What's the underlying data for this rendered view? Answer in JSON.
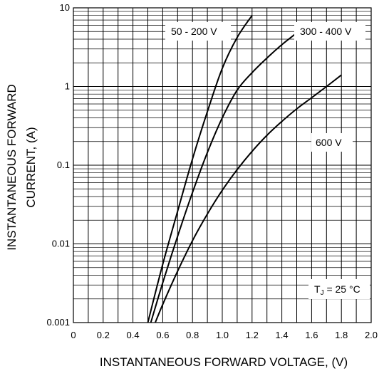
{
  "chart_data": {
    "type": "line",
    "xlabel": "INSTANTANEOUS FORWARD VOLTAGE, (V)",
    "ylabel_line1": "INSTANTANEOUS FORWARD",
    "ylabel_line2": "CURRENT, (A)",
    "xlim": [
      0,
      2.0
    ],
    "ylim": [
      0.001,
      10
    ],
    "yscale": "log",
    "grid": true,
    "x_ticks": [
      {
        "value": 0,
        "label": "0"
      },
      {
        "value": 0.2,
        "label": "0.2"
      },
      {
        "value": 0.4,
        "label": "0.4"
      },
      {
        "value": 0.6,
        "label": "0.6"
      },
      {
        "value": 0.8,
        "label": "0.8"
      },
      {
        "value": 1.0,
        "label": "1.0"
      },
      {
        "value": 1.2,
        "label": "1.2"
      },
      {
        "value": 1.4,
        "label": "1.4"
      },
      {
        "value": 1.6,
        "label": "1.6"
      },
      {
        "value": 1.8,
        "label": "1.8"
      },
      {
        "value": 2.0,
        "label": "2.0"
      }
    ],
    "y_ticks": [
      {
        "value": 0.001,
        "label": "0.001"
      },
      {
        "value": 0.01,
        "label": "0.01"
      },
      {
        "value": 0.1,
        "label": "0.1"
      },
      {
        "value": 1,
        "label": "1"
      },
      {
        "value": 10,
        "label": "10"
      }
    ],
    "series": [
      {
        "name": "50 - 200 V",
        "points": [
          [
            0.5,
            0.001
          ],
          [
            0.6,
            0.0055
          ],
          [
            0.7,
            0.026
          ],
          [
            0.8,
            0.12
          ],
          [
            0.9,
            0.48
          ],
          [
            1.0,
            1.7
          ],
          [
            1.1,
            4.2
          ],
          [
            1.2,
            8.0
          ]
        ]
      },
      {
        "name": "300 - 400 V",
        "points": [
          [
            0.52,
            0.001
          ],
          [
            0.6,
            0.0032
          ],
          [
            0.7,
            0.0125
          ],
          [
            0.8,
            0.045
          ],
          [
            0.9,
            0.145
          ],
          [
            1.0,
            0.4
          ],
          [
            1.1,
            0.9
          ],
          [
            1.2,
            1.5
          ],
          [
            1.3,
            2.3
          ],
          [
            1.4,
            3.4
          ],
          [
            1.5,
            4.8
          ]
        ]
      },
      {
        "name": "600 V",
        "points": [
          [
            0.55,
            0.001
          ],
          [
            0.6,
            0.0017
          ],
          [
            0.7,
            0.0045
          ],
          [
            0.8,
            0.011
          ],
          [
            0.9,
            0.024
          ],
          [
            1.0,
            0.048
          ],
          [
            1.1,
            0.088
          ],
          [
            1.2,
            0.15
          ],
          [
            1.3,
            0.24
          ],
          [
            1.4,
            0.36
          ],
          [
            1.5,
            0.52
          ],
          [
            1.6,
            0.72
          ],
          [
            1.7,
            1.0
          ],
          [
            1.8,
            1.4
          ]
        ]
      }
    ],
    "annotations": [
      {
        "id": "label-50-200",
        "text": "50 - 200 V",
        "series": 0
      },
      {
        "id": "label-300-400",
        "text": "300 - 400 V",
        "series": 1
      },
      {
        "id": "label-600",
        "text": "600 V",
        "series": 2
      }
    ],
    "condition": {
      "prefix": "T",
      "subscript": "J",
      "suffix": " = 25 °C"
    }
  }
}
